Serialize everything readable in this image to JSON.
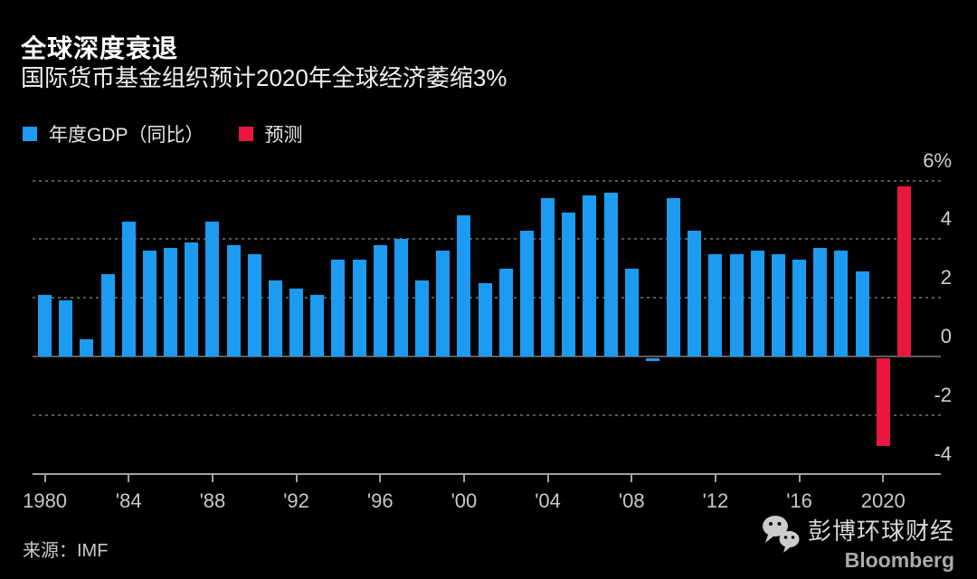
{
  "header": {
    "title": "全球深度衰退",
    "subtitle": "国际货币基金组织预计2020年全球经济萎缩3%"
  },
  "legend": {
    "items": [
      {
        "label": "年度GDP（同比）",
        "color": "#1c9bf0"
      },
      {
        "label": "预测",
        "color": "#e9173f"
      }
    ]
  },
  "chart_data": {
    "type": "bar",
    "title": "全球深度衰退",
    "subtitle": "国际货币基金组织预计2020年全球经济萎缩3%",
    "ylabel": "",
    "xlabel": "",
    "unit": "%",
    "ylim": [
      -4,
      6
    ],
    "grid": "dotted-horizontal",
    "axis_side": "right",
    "x": [
      1980,
      1981,
      1982,
      1983,
      1984,
      1985,
      1986,
      1987,
      1988,
      1989,
      1990,
      1991,
      1992,
      1993,
      1994,
      1995,
      1996,
      1997,
      1998,
      1999,
      2000,
      2001,
      2002,
      2003,
      2004,
      2005,
      2006,
      2007,
      2008,
      2009,
      2010,
      2011,
      2012,
      2013,
      2014,
      2015,
      2016,
      2017,
      2018,
      2019,
      2020,
      2021
    ],
    "values": [
      2.1,
      1.9,
      0.6,
      2.8,
      4.6,
      3.6,
      3.7,
      3.9,
      4.6,
      3.8,
      3.5,
      2.6,
      2.3,
      2.1,
      3.3,
      3.3,
      3.8,
      4.0,
      2.6,
      3.6,
      4.8,
      2.5,
      3.0,
      4.3,
      5.4,
      4.9,
      5.5,
      5.6,
      3.0,
      -0.1,
      5.4,
      4.3,
      3.5,
      3.5,
      3.6,
      3.5,
      3.3,
      3.7,
      3.6,
      2.9,
      -3.0,
      5.8
    ],
    "forecast_years": [
      2020,
      2021
    ],
    "colors": {
      "actual": "#1c9bf0",
      "forecast": "#e9173f"
    },
    "yticks": [
      {
        "value": 6,
        "label": "6%"
      },
      {
        "value": 4,
        "label": "4"
      },
      {
        "value": 2,
        "label": "2"
      },
      {
        "value": 0,
        "label": "0"
      },
      {
        "value": -2,
        "label": "-2"
      },
      {
        "value": -4,
        "label": "-4"
      }
    ],
    "xticks": [
      {
        "year": 1980,
        "label": "1980"
      },
      {
        "year": 1984,
        "label": "'84"
      },
      {
        "year": 1988,
        "label": "'88"
      },
      {
        "year": 1992,
        "label": "'92"
      },
      {
        "year": 1996,
        "label": "'96"
      },
      {
        "year": 2000,
        "label": "'00"
      },
      {
        "year": 2004,
        "label": "'04"
      },
      {
        "year": 2008,
        "label": "'08"
      },
      {
        "year": 2012,
        "label": "'12"
      },
      {
        "year": 2016,
        "label": "'16"
      },
      {
        "year": 2020,
        "label": "2020"
      }
    ]
  },
  "footer": {
    "source": "来源：IMF",
    "brand_cn": "彭博环球财经",
    "brand_en": "Bloomberg",
    "brand_icon": "wechat-icon"
  }
}
